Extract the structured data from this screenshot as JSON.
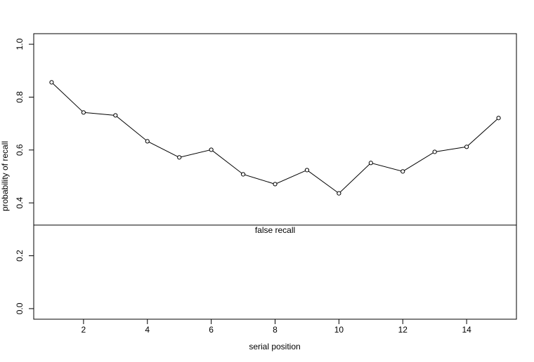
{
  "chart_data": {
    "type": "line",
    "color": "#000000",
    "x": [
      1,
      2,
      3,
      4,
      5,
      6,
      7,
      8,
      9,
      10,
      11,
      12,
      13,
      14,
      15
    ],
    "values": [
      0.856,
      0.742,
      0.731,
      0.633,
      0.572,
      0.601,
      0.508,
      0.471,
      0.524,
      0.436,
      0.551,
      0.519,
      0.593,
      0.612,
      0.721
    ],
    "xlim": [
      0.44,
      15.56
    ],
    "ylim": [
      -0.04,
      1.04
    ],
    "xticks": [
      2,
      4,
      6,
      8,
      10,
      12,
      14
    ],
    "yticks": [
      {
        "value": 0,
        "label": "0.0"
      },
      0.2,
      0.4,
      0.6,
      0.8,
      {
        "value": 1,
        "label": "1.0"
      }
    ],
    "x_label": "serial position",
    "y_label": "probability of recall",
    "hline": {
      "value": 0.316,
      "label": "false recall"
    }
  }
}
